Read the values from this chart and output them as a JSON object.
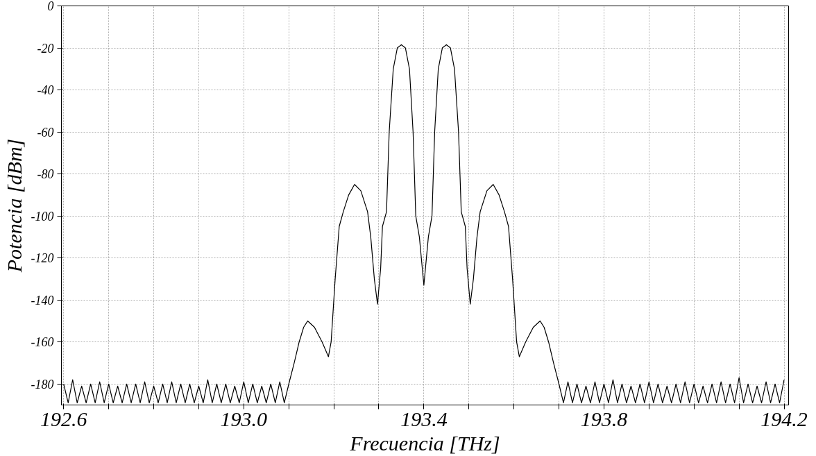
{
  "chart_data": {
    "type": "line",
    "xlabel": "Frecuencia [THz]",
    "ylabel": "Potencia [dBm]",
    "xlim": [
      192.595,
      194.21
    ],
    "ylim": [
      -190,
      0
    ],
    "xticks": [
      {
        "value": 192.6,
        "label": "192.6"
      },
      {
        "value": 192.7,
        "label": null
      },
      {
        "value": 192.8,
        "label": null
      },
      {
        "value": 192.9,
        "label": null
      },
      {
        "value": 193.0,
        "label": "193.0"
      },
      {
        "value": 193.1,
        "label": null
      },
      {
        "value": 193.2,
        "label": null
      },
      {
        "value": 193.3,
        "label": null
      },
      {
        "value": 193.4,
        "label": "193.4"
      },
      {
        "value": 193.5,
        "label": null
      },
      {
        "value": 193.6,
        "label": null
      },
      {
        "value": 193.7,
        "label": null
      },
      {
        "value": 193.8,
        "label": "193.8"
      },
      {
        "value": 193.9,
        "label": null
      },
      {
        "value": 194.0,
        "label": null
      },
      {
        "value": 194.1,
        "label": null
      },
      {
        "value": 194.2,
        "label": "194.2"
      }
    ],
    "yticks": [
      0,
      -20,
      -40,
      -60,
      -80,
      -100,
      -120,
      -140,
      -160,
      -180
    ],
    "grid": true,
    "marker": "none",
    "line_style": "solid",
    "series": [
      {
        "color": "#000000",
        "x": [
          192.6,
          192.61,
          192.62,
          192.63,
          192.64,
          192.65,
          192.66,
          192.67,
          192.68,
          192.69,
          192.7,
          192.71,
          192.72,
          192.73,
          192.74,
          192.75,
          192.76,
          192.77,
          192.78,
          192.79,
          192.8,
          192.81,
          192.82,
          192.83,
          192.84,
          192.85,
          192.86,
          192.87,
          192.88,
          192.89,
          192.9,
          192.91,
          192.92,
          192.93,
          192.94,
          192.95,
          192.96,
          192.97,
          192.98,
          192.99,
          193.0,
          193.01,
          193.02,
          193.03,
          193.04,
          193.05,
          193.06,
          193.07,
          193.08,
          193.09,
          193.1,
          193.112,
          193.123,
          193.133,
          193.142,
          193.157,
          193.174,
          193.188,
          193.194,
          193.203,
          193.212,
          193.221,
          193.233,
          193.246,
          193.26,
          193.275,
          193.282,
          193.29,
          193.297,
          193.304,
          193.308,
          193.317,
          193.323,
          193.332,
          193.341,
          193.35,
          193.359,
          193.368,
          193.376,
          193.382,
          193.39,
          193.4,
          193.41,
          193.418,
          193.424,
          193.432,
          193.441,
          193.45,
          193.459,
          193.468,
          193.477,
          193.483,
          193.492,
          193.496,
          193.503,
          193.51,
          193.518,
          193.525,
          193.54,
          193.554,
          193.567,
          193.579,
          193.588,
          193.597,
          193.606,
          193.612,
          193.626,
          193.643,
          193.658,
          193.667,
          193.677,
          193.688,
          193.7,
          193.71,
          193.72,
          193.73,
          193.74,
          193.75,
          193.76,
          193.77,
          193.78,
          193.79,
          193.8,
          193.81,
          193.82,
          193.83,
          193.84,
          193.85,
          193.86,
          193.87,
          193.88,
          193.89,
          193.9,
          193.91,
          193.92,
          193.93,
          193.94,
          193.95,
          193.96,
          193.97,
          193.98,
          193.99,
          194.0,
          194.01,
          194.02,
          194.03,
          194.04,
          194.05,
          194.06,
          194.07,
          194.08,
          194.09,
          194.1,
          194.11,
          194.12,
          194.13,
          194.14,
          194.15,
          194.16,
          194.17,
          194.18,
          194.19,
          194.2
        ],
        "values": [
          -180,
          -189,
          -178,
          -189,
          -181,
          -189,
          -180,
          -189,
          -179,
          -189,
          -180,
          -189,
          -181,
          -189,
          -180,
          -189,
          -180,
          -189,
          -179,
          -189,
          -181,
          -189,
          -180,
          -189,
          -179,
          -189,
          -180,
          -189,
          -180,
          -189,
          -181,
          -189,
          -178,
          -189,
          -180,
          -189,
          -180,
          -189,
          -181,
          -189,
          -179,
          -189,
          -180,
          -189,
          -181,
          -189,
          -180,
          -189,
          -179,
          -189,
          -180,
          -170,
          -160,
          -153,
          -150,
          -153,
          -160,
          -167,
          -160,
          -130,
          -105,
          -98,
          -90,
          -85,
          -88,
          -98,
          -110,
          -130,
          -142,
          -125,
          -105,
          -98,
          -60,
          -30,
          -20,
          -18.5,
          -20,
          -30,
          -60,
          -100,
          -110,
          -133,
          -110,
          -100,
          -60,
          -30,
          -20,
          -18.5,
          -20,
          -30,
          -60,
          -98,
          -105,
          -125,
          -142,
          -130,
          -110,
          -98,
          -88,
          -85,
          -90,
          -98,
          -105,
          -130,
          -160,
          -167,
          -160,
          -153,
          -150,
          -153,
          -160,
          -170,
          -180,
          -189,
          -179,
          -189,
          -180,
          -189,
          -181,
          -189,
          -179,
          -189,
          -180,
          -189,
          -178,
          -189,
          -180,
          -189,
          -181,
          -189,
          -180,
          -189,
          -179,
          -189,
          -180,
          -189,
          -181,
          -189,
          -180,
          -189,
          -179,
          -189,
          -180,
          -189,
          -181,
          -189,
          -180,
          -189,
          -179,
          -189,
          -180,
          -189,
          -177,
          -189,
          -180,
          -189,
          -181,
          -189,
          -179,
          -189,
          -180,
          -189,
          -178
        ]
      }
    ]
  }
}
